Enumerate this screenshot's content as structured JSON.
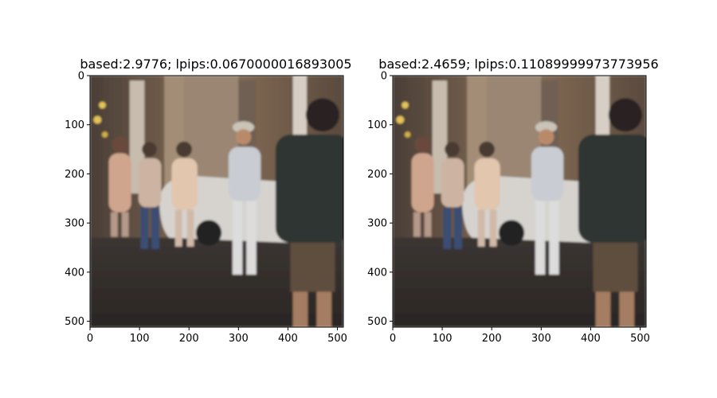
{
  "figure": {
    "background": "#ffffff"
  },
  "chart_data": [
    {
      "type": "image",
      "title": "based:2.9776; lpips:0.0670000016893005",
      "image_size": [
        512,
        512
      ],
      "xlim": [
        0,
        512
      ],
      "ylim": [
        512,
        0
      ],
      "xticks": [
        0,
        100,
        200,
        300,
        400,
        500
      ],
      "yticks": [
        0,
        100,
        200,
        300,
        400,
        500
      ],
      "xtick_labels": [
        "0",
        "100",
        "200",
        "300",
        "400",
        "500"
      ],
      "ytick_labels": [
        "0",
        "100",
        "200",
        "300",
        "400",
        "500"
      ],
      "image_content": "blurred evening street scene with pedestrians and a white car",
      "colors": {
        "sky": "#3a3430",
        "wall": "#6b5a4a",
        "road": "#2e2a28",
        "shirt_dark": "#2f3533",
        "shirt_light": "#c9ccd2",
        "skin": "#b98a6a",
        "car": "#d8d6d2"
      }
    },
    {
      "type": "image",
      "title": "based:2.4659; lpips:0.11089999973773956",
      "image_size": [
        512,
        512
      ],
      "xlim": [
        0,
        512
      ],
      "ylim": [
        512,
        0
      ],
      "xticks": [
        0,
        100,
        200,
        300,
        400,
        500
      ],
      "yticks": [
        0,
        100,
        200,
        300,
        400,
        500
      ],
      "xtick_labels": [
        "0",
        "100",
        "200",
        "300",
        "400",
        "500"
      ],
      "ytick_labels": [
        "0",
        "100",
        "200",
        "300",
        "400",
        "500"
      ],
      "image_content": "blurred evening street scene with pedestrians and a white car",
      "colors": {
        "sky": "#3a3430",
        "wall": "#6b5a4a",
        "road": "#2e2a28",
        "shirt_dark": "#2f3533",
        "shirt_light": "#c9ccd2",
        "skin": "#b98a6a",
        "car": "#d8d6d2"
      }
    }
  ]
}
